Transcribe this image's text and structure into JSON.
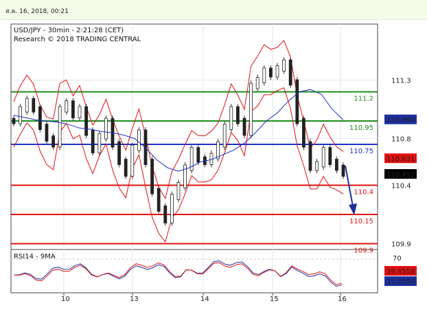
{
  "timestamp": "ส.ค. 16, 2018, 00:21",
  "chart_data": {
    "type": "line",
    "title": "USD/JPY - 30min - 2:21:28 (CET)",
    "subtitle": "Research © 2018 TRADING CENTRAL",
    "x_ticks": [
      "10",
      "13",
      "14",
      "15",
      "16"
    ],
    "y_ticks": [
      "111.3",
      "110.8",
      "110.4",
      "109.9"
    ],
    "ylim": [
      109.85,
      111.78
    ],
    "levels": [
      {
        "value": 111.2,
        "label": "111.2",
        "color": "#1e8c1e"
      },
      {
        "value": 110.95,
        "label": "110.95",
        "color": "#1e8c1e"
      },
      {
        "value": 110.75,
        "label": "110.75",
        "color": "#1c2fc8"
      },
      {
        "value": 110.4,
        "label": "110.4",
        "color": "#e01010"
      },
      {
        "value": 110.15,
        "label": "110.15",
        "color": "#e01010"
      },
      {
        "value": 109.9,
        "label": "109.9",
        "color": "#e01010"
      }
    ],
    "price_tags": [
      {
        "value": 110.964,
        "label": "110.964",
        "bg": "#1c2f9c",
        "fg": "#ffffff"
      },
      {
        "value": 110.631,
        "label": "110.631",
        "bg": "#e01010",
        "fg": "#ffffff"
      },
      {
        "value": 110.497,
        "label": "110.497",
        "bg": "#000000",
        "fg": "#ffffff"
      }
    ],
    "price_close": [
      110.95,
      111.05,
      111.12,
      111.05,
      110.9,
      110.8,
      110.75,
      111.05,
      111.1,
      111.0,
      111.05,
      110.85,
      110.7,
      110.82,
      110.95,
      110.75,
      110.6,
      110.5,
      110.72,
      110.85,
      110.6,
      110.35,
      110.2,
      110.1,
      110.3,
      110.4,
      110.55,
      110.7,
      110.62,
      110.6,
      110.65,
      110.75,
      110.9,
      111.05,
      110.95,
      110.85,
      111.25,
      111.3,
      111.38,
      111.35,
      111.4,
      111.45,
      111.28,
      110.95,
      110.75,
      110.55,
      110.58,
      110.7,
      110.6,
      110.55,
      110.5
    ],
    "ma_blue": [
      111.0,
      110.98,
      110.96,
      110.95,
      110.94,
      110.92,
      110.89,
      110.88,
      110.86,
      110.85,
      110.83,
      110.8,
      110.72,
      110.62,
      110.55,
      110.52,
      110.55,
      110.6,
      110.62,
      110.66,
      110.7,
      110.76,
      110.85,
      110.95,
      111.02,
      111.12,
      111.2,
      111.22,
      111.18,
      111.05,
      110.96
    ],
    "rsi": {
      "label": "RSI14 - 9MA",
      "level_label": "70",
      "tags": [
        {
          "label": "39.4558",
          "bg": "#e01010",
          "fg": "#ffffff"
        },
        {
          "label": "31.2558",
          "bg": "#1c2f9c",
          "fg": "#ffffff"
        }
      ]
    }
  }
}
